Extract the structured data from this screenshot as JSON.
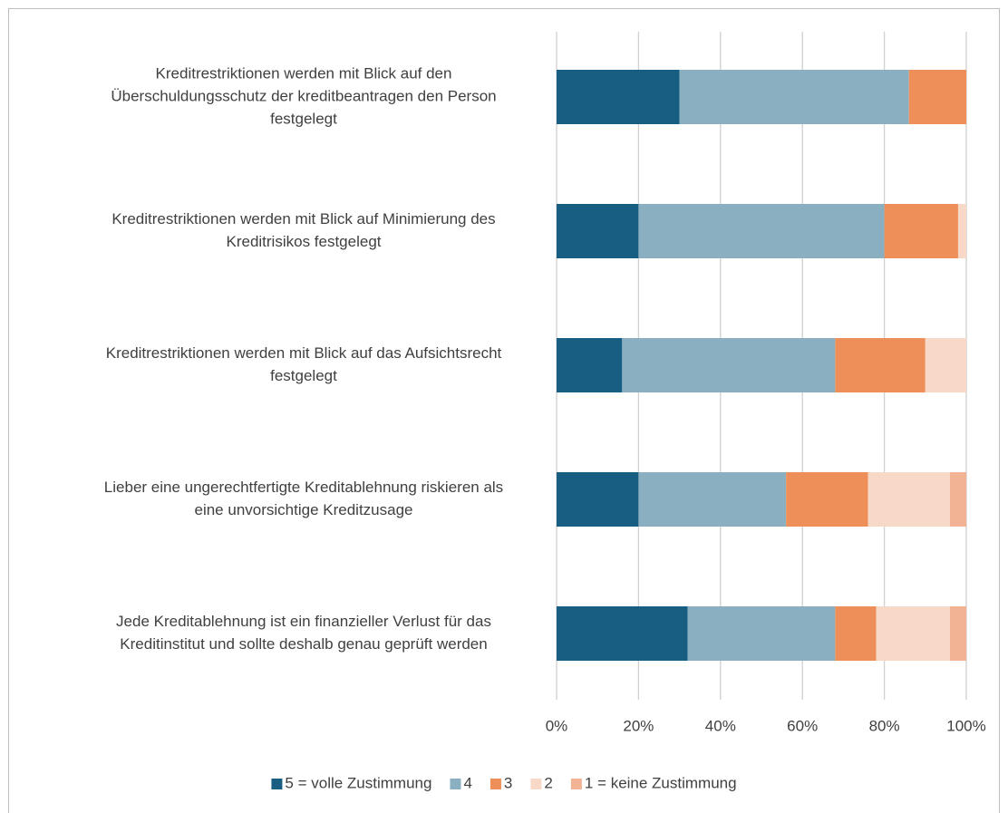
{
  "chart_data": {
    "type": "stacked-barh",
    "categories": [
      [
        "Kreditrestriktionen werden mit Blick auf den",
        "Überschuldungsschutz der kreditbeantragen den Person",
        "festgelegt"
      ],
      [
        "Kreditrestriktionen werden mit Blick auf Minimierung des",
        "Kreditrisikos festgelegt"
      ],
      [
        "Kreditrestriktionen werden mit Blick auf das Aufsichtsrecht",
        "festgelegt"
      ],
      [
        "Lieber eine ungerechtfertigte Kreditablehnung riskieren als",
        "eine unvorsichtige Kreditzusage"
      ],
      [
        "Jede Kreditablehnung ist ein finanzieller Verlust für das",
        "Kreditinstitut und sollte deshalb genau geprüft werden"
      ]
    ],
    "series": [
      {
        "name": "5 = volle Zustimmung",
        "color": "#175e82",
        "values": [
          30,
          20,
          16,
          20,
          32
        ]
      },
      {
        "name": "4",
        "color": "#8aafc1",
        "values": [
          56,
          60,
          52,
          36,
          36
        ]
      },
      {
        "name": "3",
        "color": "#ee8f5a",
        "values": [
          14,
          18,
          22,
          20,
          10
        ]
      },
      {
        "name": "2",
        "color": "#f8d9c7",
        "values": [
          0,
          2,
          10,
          20,
          18
        ]
      },
      {
        "name": "1 = keine Zustimmung",
        "color": "#f2b395",
        "values": [
          0,
          0,
          0,
          4,
          4
        ]
      }
    ],
    "xlim": [
      0,
      100
    ],
    "xticks": [
      {
        "value": 0,
        "label": "0%"
      },
      {
        "value": 20,
        "label": "20%"
      },
      {
        "value": 40,
        "label": "40%"
      },
      {
        "value": 60,
        "label": "60%"
      },
      {
        "value": 80,
        "label": "80%"
      },
      {
        "value": 100,
        "label": "100%"
      }
    ],
    "grid": true,
    "legend": "bottom"
  }
}
